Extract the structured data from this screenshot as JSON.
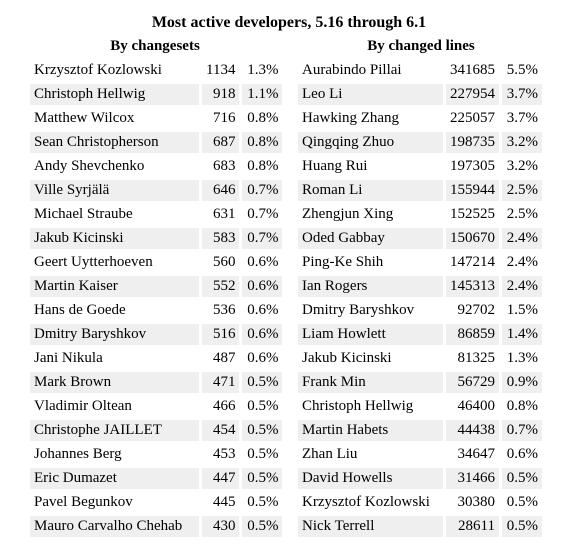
{
  "title": "Most active developers, 5.16 through 6.1",
  "by_changesets": {
    "heading": "By changesets",
    "rows": [
      {
        "name": "Krzysztof Kozlowski",
        "count": "1134",
        "pct": "1.3%"
      },
      {
        "name": "Christoph Hellwig",
        "count": "918",
        "pct": "1.1%"
      },
      {
        "name": "Matthew Wilcox",
        "count": "716",
        "pct": "0.8%"
      },
      {
        "name": "Sean Christopherson",
        "count": "687",
        "pct": "0.8%"
      },
      {
        "name": "Andy Shevchenko",
        "count": "683",
        "pct": "0.8%"
      },
      {
        "name": "Ville Syrjälä",
        "count": "646",
        "pct": "0.7%"
      },
      {
        "name": "Michael Straube",
        "count": "631",
        "pct": "0.7%"
      },
      {
        "name": "Jakub Kicinski",
        "count": "583",
        "pct": "0.7%"
      },
      {
        "name": "Geert Uytterhoeven",
        "count": "560",
        "pct": "0.6%"
      },
      {
        "name": "Martin Kaiser",
        "count": "552",
        "pct": "0.6%"
      },
      {
        "name": "Hans de Goede",
        "count": "536",
        "pct": "0.6%"
      },
      {
        "name": "Dmitry Baryshkov",
        "count": "516",
        "pct": "0.6%"
      },
      {
        "name": "Jani Nikula",
        "count": "487",
        "pct": "0.6%"
      },
      {
        "name": "Mark Brown",
        "count": "471",
        "pct": "0.5%"
      },
      {
        "name": "Vladimir Oltean",
        "count": "466",
        "pct": "0.5%"
      },
      {
        "name": "Christophe JAILLET",
        "count": "454",
        "pct": "0.5%"
      },
      {
        "name": "Johannes Berg",
        "count": "453",
        "pct": "0.5%"
      },
      {
        "name": "Eric Dumazet",
        "count": "447",
        "pct": "0.5%"
      },
      {
        "name": "Pavel Begunkov",
        "count": "445",
        "pct": "0.5%"
      },
      {
        "name": "Mauro Carvalho Chehab",
        "count": "430",
        "pct": "0.5%"
      }
    ]
  },
  "by_changed_lines": {
    "heading": "By changed lines",
    "rows": [
      {
        "name": "Aurabindo Pillai",
        "count": "341685",
        "pct": "5.5%"
      },
      {
        "name": "Leo Li",
        "count": "227954",
        "pct": "3.7%"
      },
      {
        "name": "Hawking Zhang",
        "count": "225057",
        "pct": "3.7%"
      },
      {
        "name": "Qingqing Zhuo",
        "count": "198735",
        "pct": "3.2%"
      },
      {
        "name": "Huang Rui",
        "count": "197305",
        "pct": "3.2%"
      },
      {
        "name": "Roman Li",
        "count": "155944",
        "pct": "2.5%"
      },
      {
        "name": "Zhengjun Xing",
        "count": "152525",
        "pct": "2.5%"
      },
      {
        "name": "Oded Gabbay",
        "count": "150670",
        "pct": "2.4%"
      },
      {
        "name": "Ping-Ke Shih",
        "count": "147214",
        "pct": "2.4%"
      },
      {
        "name": "Ian Rogers",
        "count": "145313",
        "pct": "2.4%"
      },
      {
        "name": "Dmitry Baryshkov",
        "count": "92702",
        "pct": "1.5%"
      },
      {
        "name": "Liam Howlett",
        "count": "86859",
        "pct": "1.4%"
      },
      {
        "name": "Jakub Kicinski",
        "count": "81325",
        "pct": "1.3%"
      },
      {
        "name": "Frank Min",
        "count": "56729",
        "pct": "0.9%"
      },
      {
        "name": "Christoph Hellwig",
        "count": "46400",
        "pct": "0.8%"
      },
      {
        "name": "Martin Habets",
        "count": "44438",
        "pct": "0.7%"
      },
      {
        "name": "Zhan Liu",
        "count": "34647",
        "pct": "0.6%"
      },
      {
        "name": "David Howells",
        "count": "31466",
        "pct": "0.5%"
      },
      {
        "name": "Krzysztof Kozlowski",
        "count": "30380",
        "pct": "0.5%"
      },
      {
        "name": "Nick Terrell",
        "count": "28611",
        "pct": "0.5%"
      }
    ]
  }
}
